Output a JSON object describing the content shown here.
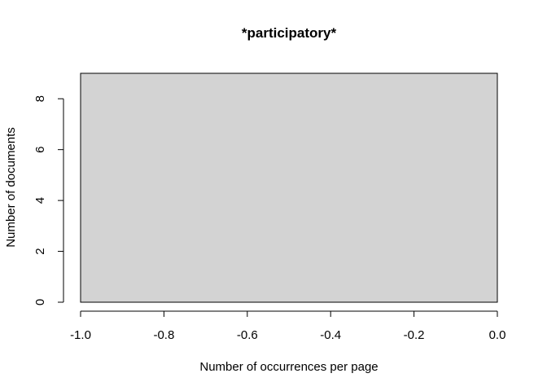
{
  "chart_data": {
    "type": "bar",
    "title": "*participatory*",
    "xlabel": "Number of occurrences per page",
    "ylabel": "Number of documents",
    "xlim": [
      -1.0,
      0.0
    ],
    "ylim": [
      0,
      9
    ],
    "x_ticks": [
      -1.0,
      -0.8,
      -0.6,
      -0.4,
      -0.2,
      0.0
    ],
    "x_tick_labels": [
      "-1.0",
      "-0.8",
      "-0.6",
      "-0.4",
      "-0.2",
      "0.0"
    ],
    "y_ticks": [
      0,
      2,
      4,
      6,
      8
    ],
    "y_tick_labels": [
      "0",
      "2",
      "4",
      "6",
      "8"
    ],
    "bars": [
      {
        "x_start": -1.0,
        "x_end": 0.0,
        "value": 9
      }
    ],
    "grid": false,
    "legend": "none",
    "bar_color": "#d3d3d3"
  }
}
